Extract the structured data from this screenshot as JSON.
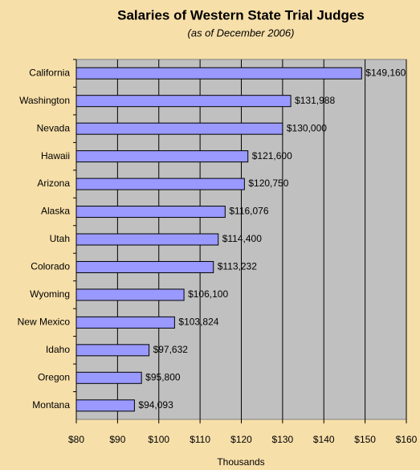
{
  "chart_data": {
    "type": "hbar",
    "title": "Salaries of Western State Trial Judges",
    "subtitle": "(as of December 2006)",
    "x_label": "Thousands",
    "categories": [
      "California",
      "Washington",
      "Nevada",
      "Hawaii",
      "Arizona",
      "Alaska",
      "Utah",
      "Colorado",
      "Wyoming",
      "New Mexico",
      "Idaho",
      "Oregon",
      "Montana"
    ],
    "values": [
      149.16,
      131.988,
      130,
      121.6,
      120.75,
      116.076,
      114.4,
      113.232,
      106.1,
      103.824,
      97.632,
      95.8,
      94.093
    ],
    "value_labels": [
      "$149,160",
      "$131,988",
      "$130,000",
      "$121,600",
      "$120,750",
      "$116,076",
      "$114,400",
      "$113,232",
      "$106,100",
      "$103,824",
      "$97,632",
      "$95,800",
      "$94,093"
    ],
    "color": "#9999ff",
    "grid": true,
    "xlim": [
      80,
      160
    ],
    "xticks": [
      {
        "value": 80,
        "label": "$80"
      },
      {
        "value": 90,
        "label": "$90"
      },
      {
        "value": 100,
        "label": "$100"
      },
      {
        "value": 110,
        "label": "$110"
      },
      {
        "value": 120,
        "label": "$120"
      },
      {
        "value": 130,
        "label": "$130"
      },
      {
        "value": 140,
        "label": "$140"
      },
      {
        "value": 150,
        "label": "$150"
      },
      {
        "value": 160,
        "label": "$160"
      }
    ]
  }
}
